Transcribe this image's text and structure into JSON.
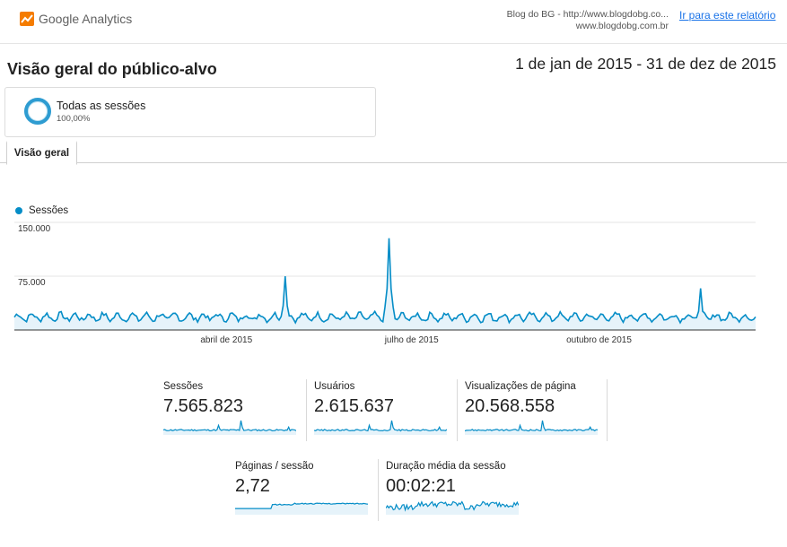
{
  "header": {
    "logo_text": "Google Analytics",
    "property_line1": "Blog do BG - http://www.blogdobg.co...",
    "property_line2": "www.blogdobg.com.br",
    "report_link": "Ir para este relatório"
  },
  "page": {
    "title": "Visão geral do público-alvo",
    "date_range": "1 de jan de 2015 - 31 de dez de 2015"
  },
  "segment": {
    "name": "Todas as sessões",
    "percent": "100,00%"
  },
  "tabs": [
    {
      "label": "Visão geral"
    }
  ],
  "colors": {
    "accent": "#058dc7",
    "fill": "#e6f3fa",
    "link": "#1a73e8"
  },
  "chart_data": {
    "type": "area",
    "series": [
      {
        "name": "Sessões"
      }
    ],
    "y_ticks": [
      "150.000",
      "75.000"
    ],
    "ylim": [
      0,
      150000
    ],
    "x_ticks": [
      "abril de 2015",
      "julho de 2015",
      "outubro de 2015"
    ],
    "x_range": [
      "2015-01-01",
      "2015-12-31"
    ],
    "annotated_peaks": [
      {
        "date": "2015-05-14",
        "value": 75000
      },
      {
        "date": "2015-07-04",
        "value": 128000
      },
      {
        "date": "2015-12-04",
        "value": 58000
      }
    ],
    "typical_range": [
      12000,
      28000
    ],
    "grid": true
  },
  "metrics": [
    {
      "label": "Sessões",
      "value": "7.565.823",
      "spark": "peaky"
    },
    {
      "label": "Usuários",
      "value": "2.615.637",
      "spark": "peaky"
    },
    {
      "label": "Visualizações de página",
      "value": "20.568.558",
      "spark": "peaky"
    },
    {
      "label": "Páginas / sessão",
      "value": "2,72",
      "spark": "step"
    },
    {
      "label": "Duração média da sessão",
      "value": "00:02:21",
      "spark": "noisy"
    }
  ]
}
